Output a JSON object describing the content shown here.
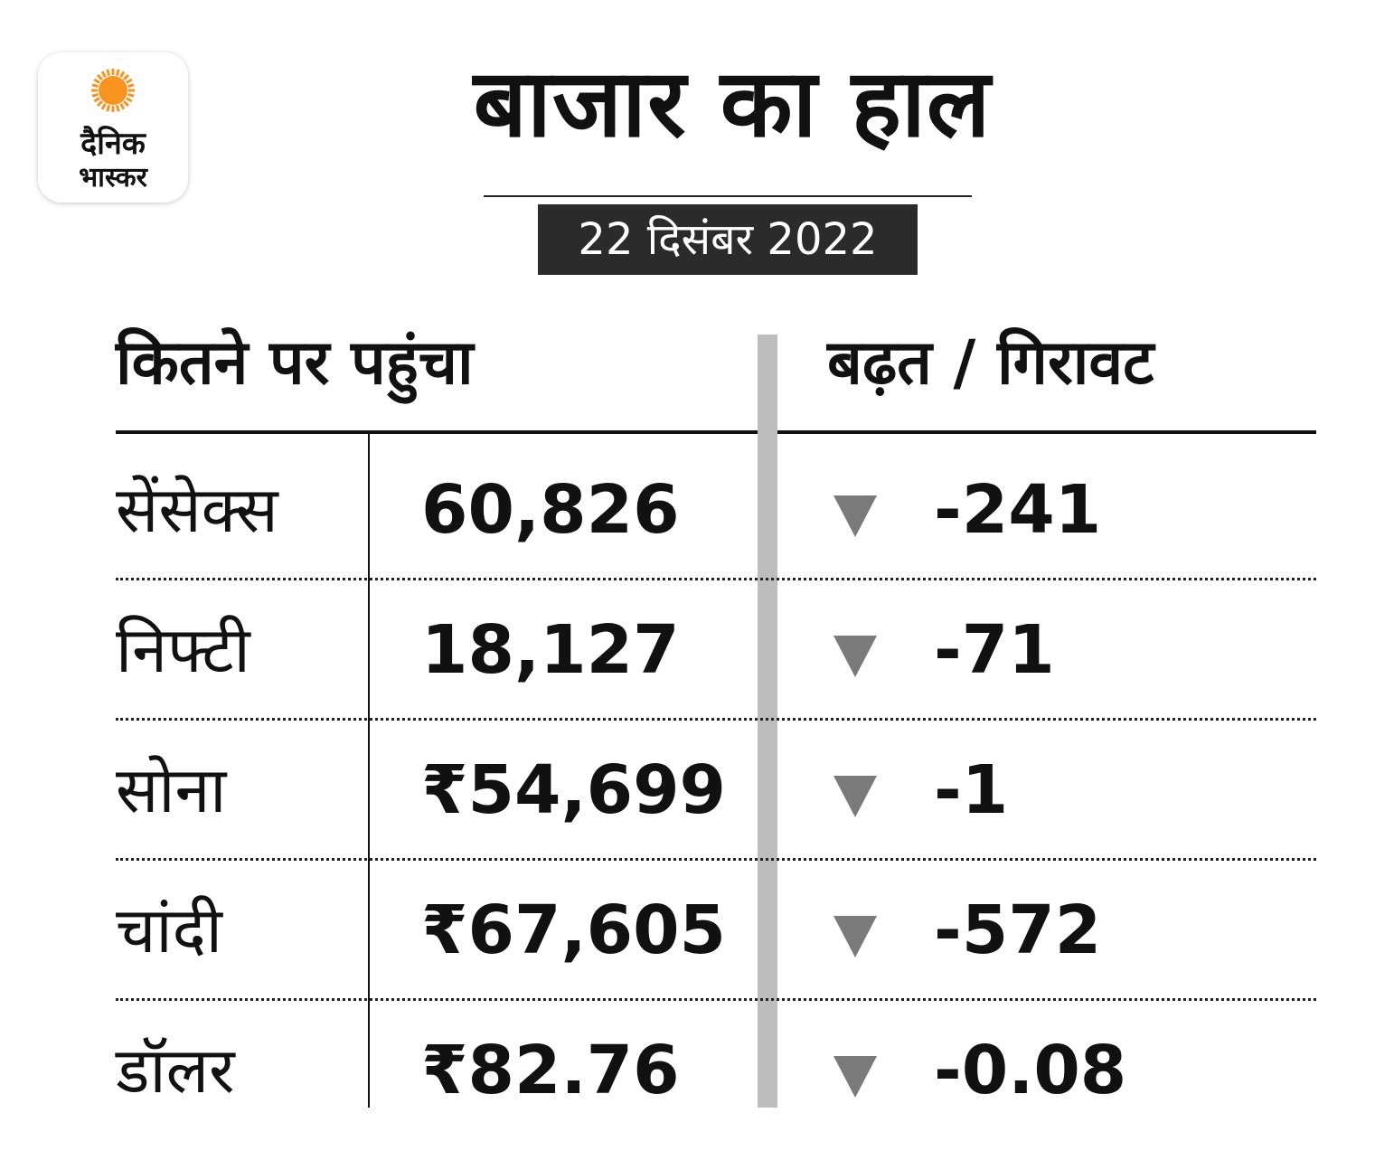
{
  "logo": {
    "line1": "दैनिक",
    "line2": "भास्कर",
    "sun_color": "#f7931e"
  },
  "title": "बाजार का हाल",
  "date": "22 दिसंबर 2022",
  "headers": {
    "left": "कितने पर पहुंचा",
    "right": "बढ़त / गिरावट"
  },
  "arrow_icon": "down-triangle-icon",
  "arrow_color": "#7a7a7a",
  "rows": [
    {
      "name": "सेंसेक्स",
      "value": "60,826",
      "change": "-241"
    },
    {
      "name": "निफ्टी",
      "value": "18,127",
      "change": "-71"
    },
    {
      "name": "सोना",
      "value": "₹54,699",
      "change": "-1"
    },
    {
      "name": "चांदी",
      "value": "₹67,605",
      "change": "-572"
    },
    {
      "name": "डॉलर",
      "value": "₹82.76",
      "change": "-0.08"
    }
  ]
}
